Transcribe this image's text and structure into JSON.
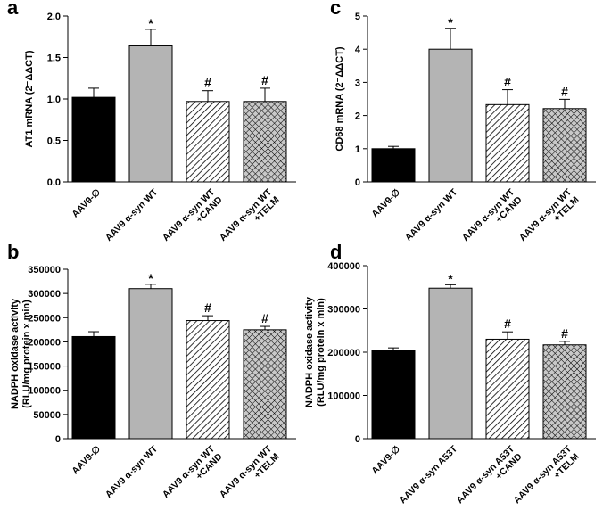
{
  "chart_data": [
    {
      "panel": "a",
      "type": "bar",
      "ylabel": "AT1 mRNA (2⁻ΔΔCT)",
      "ylim": [
        0,
        2.0
      ],
      "yticks": [
        "0.0",
        "0.5",
        "1.0",
        "1.5",
        "2.0"
      ],
      "ytick_values": [
        0,
        0.5,
        1.0,
        1.5,
        2.0
      ],
      "bars": [
        {
          "label": [
            "AAV9-∅"
          ],
          "value": 1.02,
          "error": 0.11,
          "fill": "black",
          "sig": ""
        },
        {
          "label": [
            "AAV9 α-syn WT"
          ],
          "value": 1.64,
          "error": 0.2,
          "fill": "gray",
          "sig": "*"
        },
        {
          "label": [
            "AAV9 α-syn WT",
            "+CAND"
          ],
          "value": 0.97,
          "error": 0.13,
          "fill": "hatch",
          "sig": "#"
        },
        {
          "label": [
            "AAV9 α-syn WT",
            "+TELM"
          ],
          "value": 0.97,
          "error": 0.16,
          "fill": "cross",
          "sig": "#"
        }
      ]
    },
    {
      "panel": "b",
      "type": "bar",
      "ylabel": "NADPH oxidase activity\n(RLU/mg protein x min)",
      "ylim": [
        0,
        350000
      ],
      "yticks": [
        "0",
        "50000",
        "100000",
        "150000",
        "200000",
        "250000",
        "300000",
        "350000"
      ],
      "ytick_values": [
        0,
        50000,
        100000,
        150000,
        200000,
        250000,
        300000,
        350000
      ],
      "bars": [
        {
          "label": [
            "AAV9-∅"
          ],
          "value": 211000,
          "error": 10000,
          "fill": "black",
          "sig": ""
        },
        {
          "label": [
            "AAV9 α-syn WT"
          ],
          "value": 310000,
          "error": 9000,
          "fill": "gray",
          "sig": "*"
        },
        {
          "label": [
            "AAV9 α-syn WT",
            "+CAND"
          ],
          "value": 244000,
          "error": 10000,
          "fill": "hatch",
          "sig": "#"
        },
        {
          "label": [
            "AAV9 α-syn WT",
            "+TELM"
          ],
          "value": 225000,
          "error": 7000,
          "fill": "cross",
          "sig": "#"
        }
      ]
    },
    {
      "panel": "c",
      "type": "bar",
      "ylabel": "CD68 mRNA (2⁻ΔΔCT)",
      "ylim": [
        0,
        5
      ],
      "yticks": [
        "0",
        "1",
        "2",
        "3",
        "4",
        "5"
      ],
      "ytick_values": [
        0,
        1,
        2,
        3,
        4,
        5
      ],
      "bars": [
        {
          "label": [
            "AAV9-∅"
          ],
          "value": 1.0,
          "error": 0.07,
          "fill": "black",
          "sig": ""
        },
        {
          "label": [
            "AAV9 α-syn WT"
          ],
          "value": 4.0,
          "error": 0.63,
          "fill": "gray",
          "sig": "*"
        },
        {
          "label": [
            "AAV9 α-syn WT",
            "+CAND"
          ],
          "value": 2.33,
          "error": 0.45,
          "fill": "hatch",
          "sig": "#"
        },
        {
          "label": [
            "AAV9 α-syn WT",
            "+TELM"
          ],
          "value": 2.21,
          "error": 0.28,
          "fill": "cross",
          "sig": "#"
        }
      ]
    },
    {
      "panel": "d",
      "type": "bar",
      "ylabel": "NADPH oxidase activity\n(RLU/mg protein x min)",
      "ylim": [
        0,
        400000
      ],
      "yticks": [
        "0",
        "100000",
        "200000",
        "300000",
        "400000"
      ],
      "ytick_values": [
        0,
        100000,
        200000,
        300000,
        400000
      ],
      "bars": [
        {
          "label": [
            "AAV9-∅"
          ],
          "value": 204000,
          "error": 6000,
          "fill": "black",
          "sig": ""
        },
        {
          "label": [
            "AAV9 α-syn A53T"
          ],
          "value": 348000,
          "error": 8000,
          "fill": "gray",
          "sig": "*"
        },
        {
          "label": [
            "AAV9 α-syn A53T",
            "+CAND"
          ],
          "value": 230000,
          "error": 17000,
          "fill": "hatch",
          "sig": "#"
        },
        {
          "label": [
            "AAV9 α-syn A53T",
            "+TELM"
          ],
          "value": 217000,
          "error": 8000,
          "fill": "cross",
          "sig": "#"
        }
      ]
    }
  ],
  "colors": {
    "black_bar": "#000000",
    "gray_bar": "#b4b4b4",
    "hatch_bg": "#ffffff",
    "cross_bg": "#c8c8c8"
  }
}
